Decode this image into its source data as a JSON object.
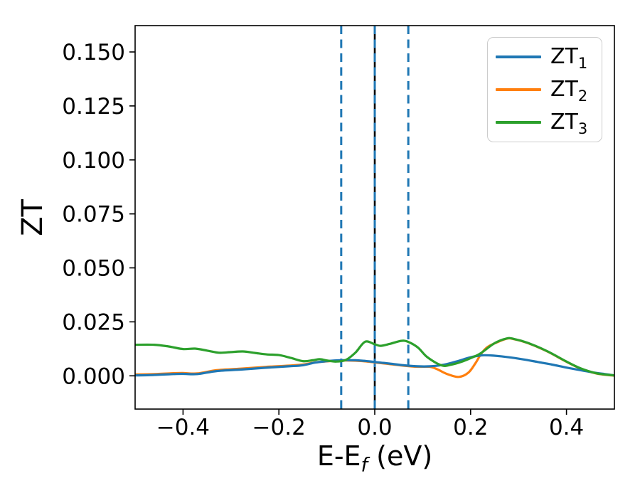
{
  "figure": {
    "background": "#ffffff",
    "axis_color": "#000000"
  },
  "chart_data": {
    "type": "line",
    "title": "",
    "xlabel": {
      "prefix": "E-E",
      "sub": "f",
      "suffix": " (eV)"
    },
    "ylabel": "ZT",
    "xlim": [
      -0.5,
      0.5
    ],
    "ylim": [
      -0.0154,
      0.1622
    ],
    "grid": false,
    "legend_position": "upper right",
    "x_ticks": [
      {
        "v": -0.4,
        "label": "−0.4"
      },
      {
        "v": -0.2,
        "label": "−0.2"
      },
      {
        "v": 0.0,
        "label": "0.0"
      },
      {
        "v": 0.2,
        "label": "0.2"
      },
      {
        "v": 0.4,
        "label": "0.4"
      }
    ],
    "y_ticks": [
      {
        "v": 0.0,
        "label": "0.000"
      },
      {
        "v": 0.025,
        "label": "0.025"
      },
      {
        "v": 0.05,
        "label": "0.050"
      },
      {
        "v": 0.075,
        "label": "0.075"
      },
      {
        "v": 0.1,
        "label": "0.100"
      },
      {
        "v": 0.125,
        "label": "0.125"
      },
      {
        "v": 0.15,
        "label": "0.150"
      }
    ],
    "vlines": [
      {
        "x": -0.07,
        "color": "#1f77b4",
        "style": "dashed"
      },
      {
        "x": 0.0,
        "color": "#000000",
        "style": "solid"
      },
      {
        "x": 0.0,
        "color": "#1f77b4",
        "style": "dashed"
      },
      {
        "x": 0.07,
        "color": "#1f77b4",
        "style": "dashed"
      }
    ],
    "series": [
      {
        "name": "ZT2",
        "label": {
          "text": "ZT",
          "sub": "2"
        },
        "color": "#ff7f0e",
        "points": [
          [
            -0.5,
            0.0006
          ],
          [
            -0.46,
            0.0008
          ],
          [
            -0.42,
            0.0012
          ],
          [
            -0.4,
            0.0013
          ],
          [
            -0.37,
            0.0011
          ],
          [
            -0.33,
            0.0026
          ],
          [
            -0.28,
            0.0033
          ],
          [
            -0.23,
            0.0041
          ],
          [
            -0.18,
            0.0047
          ],
          [
            -0.15,
            0.0052
          ],
          [
            -0.125,
            0.0062
          ],
          [
            -0.1,
            0.0067
          ],
          [
            -0.07,
            0.0071
          ],
          [
            -0.04,
            0.007
          ],
          [
            -0.02,
            0.0067
          ],
          [
            0.0,
            0.0062
          ],
          [
            0.03,
            0.0055
          ],
          [
            0.06,
            0.0047
          ],
          [
            0.09,
            0.0042
          ],
          [
            0.115,
            0.0042
          ],
          [
            0.13,
            0.0031
          ],
          [
            0.15,
            0.0009
          ],
          [
            0.175,
            -0.0005
          ],
          [
            0.195,
            0.0014
          ],
          [
            0.21,
            0.0058
          ],
          [
            0.222,
            0.0102
          ],
          [
            0.235,
            0.0133
          ],
          [
            0.25,
            0.015
          ],
          [
            0.275,
            0.0172
          ],
          [
            0.29,
            0.017
          ],
          [
            0.32,
            0.0151
          ],
          [
            0.36,
            0.0113
          ],
          [
            0.4,
            0.0065
          ],
          [
            0.43,
            0.0033
          ],
          [
            0.46,
            0.0012
          ],
          [
            0.48,
            0.0005
          ],
          [
            0.5,
            0.0001
          ]
        ]
      },
      {
        "name": "ZT1",
        "label": {
          "text": "ZT",
          "sub": "1"
        },
        "color": "#1f77b4",
        "points": [
          [
            -0.5,
            0.0002
          ],
          [
            -0.46,
            0.0004
          ],
          [
            -0.42,
            0.0008
          ],
          [
            -0.4,
            0.0009
          ],
          [
            -0.37,
            0.0008
          ],
          [
            -0.33,
            0.0022
          ],
          [
            -0.28,
            0.0029
          ],
          [
            -0.23,
            0.0037
          ],
          [
            -0.18,
            0.0044
          ],
          [
            -0.15,
            0.0049
          ],
          [
            -0.125,
            0.0061
          ],
          [
            -0.1,
            0.0068
          ],
          [
            -0.07,
            0.0072
          ],
          [
            -0.04,
            0.0072
          ],
          [
            -0.02,
            0.0069
          ],
          [
            0.0,
            0.0064
          ],
          [
            0.03,
            0.0057
          ],
          [
            0.06,
            0.0049
          ],
          [
            0.09,
            0.0044
          ],
          [
            0.115,
            0.0044
          ],
          [
            0.14,
            0.005
          ],
          [
            0.17,
            0.0066
          ],
          [
            0.2,
            0.0086
          ],
          [
            0.225,
            0.0095
          ],
          [
            0.25,
            0.0093
          ],
          [
            0.28,
            0.0086
          ],
          [
            0.31,
            0.0076
          ],
          [
            0.34,
            0.0064
          ],
          [
            0.37,
            0.0052
          ],
          [
            0.4,
            0.0038
          ],
          [
            0.43,
            0.0026
          ],
          [
            0.46,
            0.0014
          ],
          [
            0.48,
            0.0008
          ],
          [
            0.5,
            0.0002
          ]
        ]
      },
      {
        "name": "ZT3",
        "label": {
          "text": "ZT",
          "sub": "3"
        },
        "color": "#2ca02c",
        "points": [
          [
            -0.5,
            0.0144
          ],
          [
            -0.46,
            0.0144
          ],
          [
            -0.43,
            0.0136
          ],
          [
            -0.4,
            0.0124
          ],
          [
            -0.375,
            0.0126
          ],
          [
            -0.35,
            0.0117
          ],
          [
            -0.325,
            0.0107
          ],
          [
            -0.3,
            0.011
          ],
          [
            -0.275,
            0.0113
          ],
          [
            -0.25,
            0.0106
          ],
          [
            -0.225,
            0.0099
          ],
          [
            -0.2,
            0.0096
          ],
          [
            -0.175,
            0.0083
          ],
          [
            -0.15,
            0.0068
          ],
          [
            -0.13,
            0.0072
          ],
          [
            -0.115,
            0.0077
          ],
          [
            -0.1,
            0.0071
          ],
          [
            -0.08,
            0.0066
          ],
          [
            -0.06,
            0.0074
          ],
          [
            -0.04,
            0.0108
          ],
          [
            -0.02,
            0.0158
          ],
          [
            0.0,
            0.0146
          ],
          [
            0.012,
            0.0139
          ],
          [
            0.03,
            0.0147
          ],
          [
            0.055,
            0.0162
          ],
          [
            0.07,
            0.0157
          ],
          [
            0.09,
            0.0131
          ],
          [
            0.11,
            0.0086
          ],
          [
            0.14,
            0.0048
          ],
          [
            0.16,
            0.0052
          ],
          [
            0.18,
            0.0064
          ],
          [
            0.2,
            0.0082
          ],
          [
            0.22,
            0.0103
          ],
          [
            0.25,
            0.0151
          ],
          [
            0.275,
            0.0173
          ],
          [
            0.29,
            0.0171
          ],
          [
            0.32,
            0.0152
          ],
          [
            0.36,
            0.0114
          ],
          [
            0.4,
            0.0066
          ],
          [
            0.43,
            0.0034
          ],
          [
            0.46,
            0.0013
          ],
          [
            0.48,
            0.0006
          ],
          [
            0.5,
            0.0002
          ]
        ]
      }
    ],
    "legend_order": [
      "ZT1",
      "ZT2",
      "ZT3"
    ]
  }
}
